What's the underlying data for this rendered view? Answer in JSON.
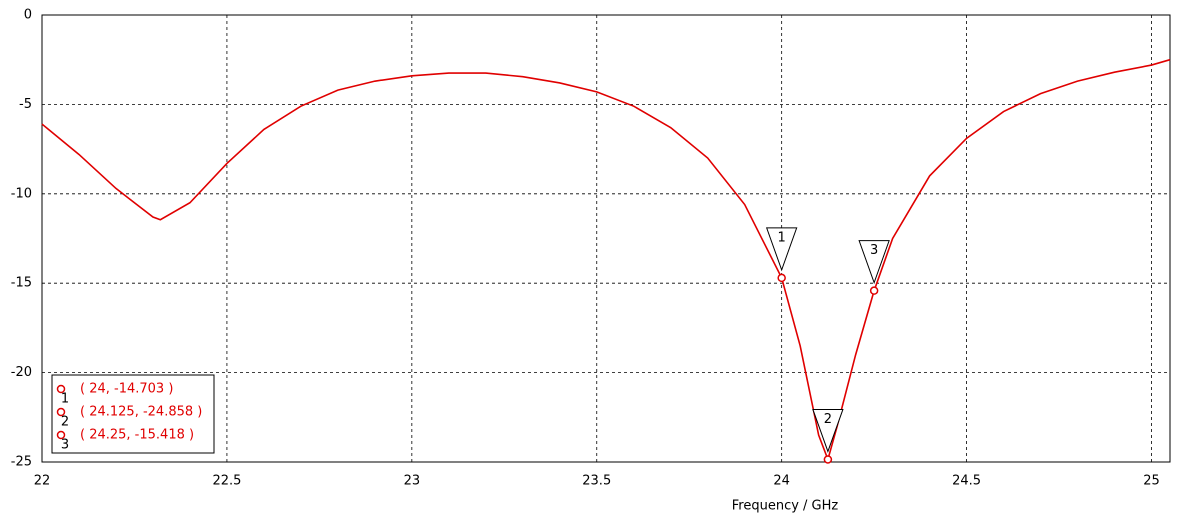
{
  "chart_data": {
    "type": "line",
    "xlabel": "Frequency / GHz",
    "x": [
      22,
      22.1,
      22.2,
      22.3,
      22.32,
      22.4,
      22.5,
      22.6,
      22.7,
      22.8,
      22.9,
      23.0,
      23.1,
      23.2,
      23.3,
      23.4,
      23.5,
      23.6,
      23.7,
      23.8,
      23.9,
      24.0,
      24.05,
      24.1,
      24.125,
      24.15,
      24.2,
      24.25,
      24.3,
      24.4,
      24.5,
      24.6,
      24.7,
      24.8,
      24.9,
      25.0,
      25.05
    ],
    "series": [
      {
        "color": "#e00000",
        "values": [
          -6.1,
          -7.8,
          -9.7,
          -11.3,
          -11.45,
          -10.5,
          -8.3,
          -6.4,
          -5.1,
          -4.2,
          -3.7,
          -3.4,
          -3.25,
          -3.25,
          -3.45,
          -3.8,
          -4.3,
          -5.1,
          -6.3,
          -8.0,
          -10.6,
          -14.703,
          -18.5,
          -23.5,
          -24.858,
          -23.0,
          -19.0,
          -15.418,
          -12.5,
          -9.0,
          -6.9,
          -5.4,
          -4.4,
          -3.7,
          -3.2,
          -2.8,
          -2.5
        ]
      }
    ],
    "xlim": [
      22,
      25.05
    ],
    "ylim": [
      -25,
      0
    ],
    "xticks": [
      22,
      22.5,
      23,
      23.5,
      24,
      24.5,
      25
    ],
    "yticks": [
      0,
      -5,
      -10,
      -15,
      -20,
      -25
    ],
    "grid": true,
    "markers": [
      {
        "label": "1",
        "x": 24,
        "y": -14.703,
        "text": "( 24, -14.703 )"
      },
      {
        "label": "2",
        "x": 24.125,
        "y": -24.858,
        "text": "( 24.125, -24.858 )"
      },
      {
        "label": "3",
        "x": 24.25,
        "y": -15.418,
        "text": "( 24.25, -15.418 )"
      }
    ]
  }
}
